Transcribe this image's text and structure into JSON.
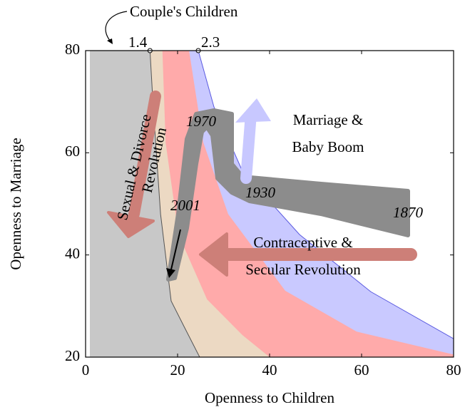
{
  "chart_data": {
    "type": "area",
    "title": "Couple's Children",
    "xlabel": "Openness to Children",
    "ylabel": "Openness to Marriage",
    "xlim": [
      0,
      80
    ],
    "ylim": [
      20,
      80
    ],
    "xticks": [
      0,
      20,
      40,
      60,
      80
    ],
    "yticks": [
      20,
      40,
      60,
      80
    ],
    "series": [
      {
        "color": "#c9c9ff",
        "stroke": "#5a5ae0",
        "label": "2.3",
        "x": [
          24.5,
          27.9,
          34.1,
          46.5,
          62,
          80
        ],
        "y": [
          80,
          69,
          56.4,
          44,
          32.8,
          23.6
        ]
      },
      {
        "color": "#ffaaaa",
        "x": [
          22.5,
          25.6,
          31,
          43.4,
          58.9,
          80
        ],
        "y": [
          80,
          62,
          48,
          33,
          25,
          20.5
        ]
      },
      {
        "color": "#ecd9c3",
        "x": [
          16.7,
          17.4,
          20.2,
          26.4,
          34.1,
          40
        ],
        "y": [
          80,
          62,
          44,
          31.3,
          24.3,
          20
        ]
      },
      {
        "color": "#c8c8c8",
        "stroke": "#555555",
        "label": "1.4",
        "x": [
          14,
          14.7,
          16.3,
          18.6,
          21.4,
          24.8
        ],
        "y": [
          80,
          69,
          48,
          31,
          26,
          20
        ]
      }
    ],
    "annotations": [
      "Marriage &",
      "Baby Boom",
      "Contraceptive &",
      "Secular Revolution",
      "Sexual & Divorce",
      "Revolution"
    ],
    "years": [
      "1970",
      "1930",
      "2001",
      "1870"
    ]
  }
}
